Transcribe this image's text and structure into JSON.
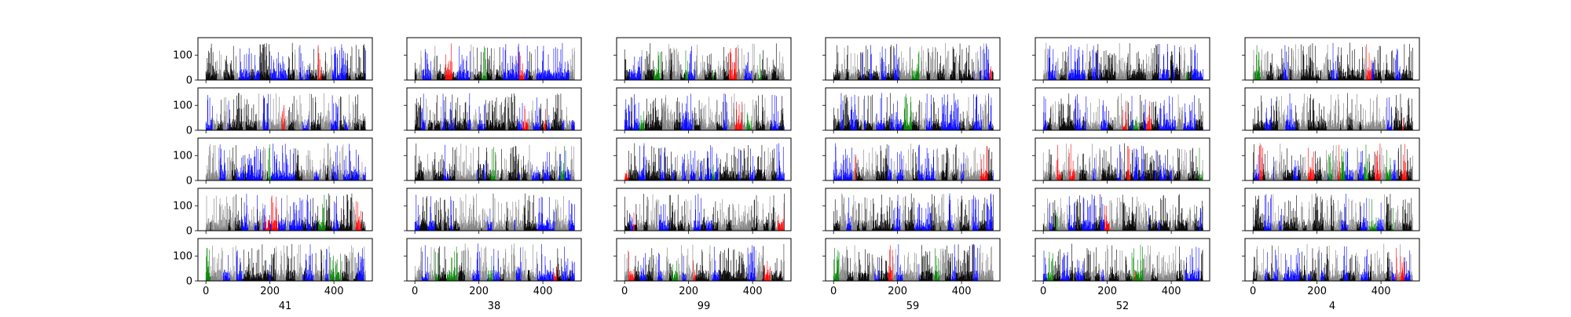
{
  "chart_data": {
    "type": "bar",
    "layout": "5 rows x 6 columns of small-multiple bar charts",
    "xlim": [
      -25,
      520
    ],
    "ylim": [
      0,
      170
    ],
    "x_ticks": [
      "0",
      "200",
      "400"
    ],
    "y_ticks": [
      "0",
      "100"
    ],
    "column_labels": [
      "41",
      "38",
      "99",
      "59",
      "52",
      "4"
    ],
    "bars_per_panel": 500,
    "bar_value_range": [
      5,
      150
    ],
    "bar_colors": [
      "#000000",
      "#808080",
      "#0000ff",
      "#008000",
      "#ff0000"
    ],
    "grid": false,
    "legend": "none"
  }
}
